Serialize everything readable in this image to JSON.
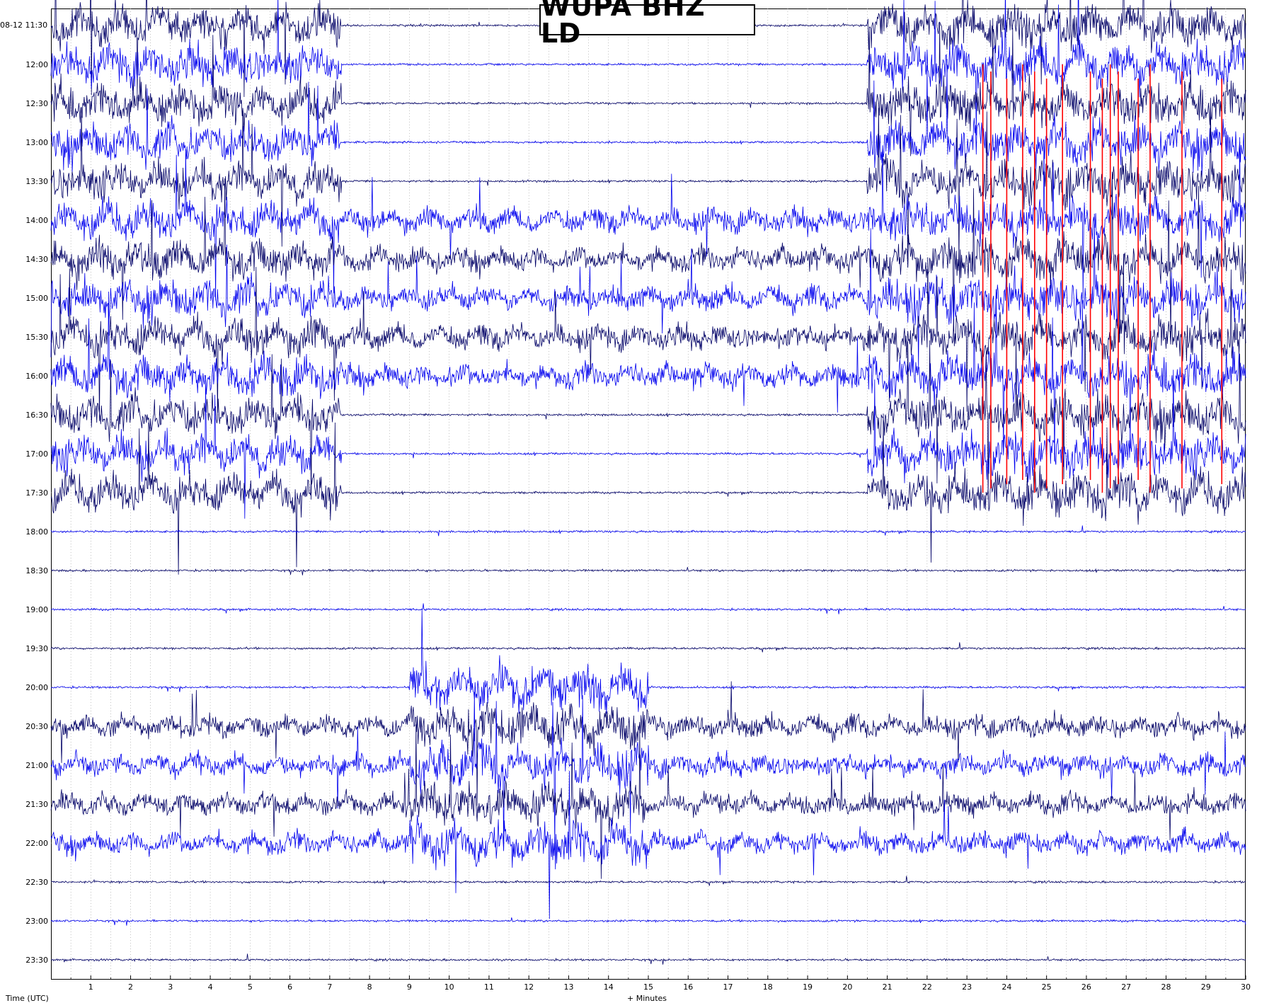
{
  "title": "WUPA BHZ LD",
  "start_label": "08-12 11:30",
  "x_axis_label_left": "Time (UTC)",
  "x_axis_label_center": "+ Minutes",
  "chart_data": {
    "type": "line",
    "title": "WUPA BHZ LD",
    "xlabel": "+ Minutes",
    "ylabel": "Time (UTC)",
    "xlim": [
      0,
      30
    ],
    "x_ticks": [
      "1",
      "2",
      "3",
      "4",
      "5",
      "6",
      "7",
      "8",
      "9",
      "10",
      "11",
      "12",
      "13",
      "14",
      "15",
      "16",
      "17",
      "18",
      "19",
      "20",
      "21",
      "22",
      "23",
      "24",
      "25",
      "26",
      "27",
      "28",
      "29",
      "30"
    ],
    "row_labels": [
      "12:00",
      "12:30",
      "13:00",
      "13:30",
      "14:00",
      "14:30",
      "15:00",
      "15:30",
      "16:00",
      "16:30",
      "17:00",
      "17:30",
      "18:00",
      "18:30",
      "19:00",
      "19:30",
      "20:00",
      "20:30",
      "21:00",
      "21:30",
      "22:00",
      "22:30",
      "23:00",
      "23:30"
    ],
    "grid": true,
    "colors": {
      "dark_trace": "#000066",
      "light_trace": "#0000ee",
      "clipped": "#ff0000",
      "grid": "#999999"
    },
    "note_series": [
      {
        "name": "Helicorder trace lines, alternating dark/light blue per row",
        "rows": 25
      }
    ],
    "activity": [
      {
        "rows": [
          0,
          12
        ],
        "start_min": 0,
        "end_min": 7.3,
        "level": 0.9
      },
      {
        "rows": [
          5,
          9
        ],
        "start_min": 7.3,
        "end_min": 23,
        "level": 0.55
      },
      {
        "rows": [
          0,
          12
        ],
        "start_min": 20.5,
        "end_min": 30,
        "level": 1.0
      },
      {
        "rows": [
          18,
          21
        ],
        "start_min": 0,
        "end_min": 30,
        "level": 0.5
      },
      {
        "rows": [
          17,
          21
        ],
        "start_min": 9,
        "end_min": 15,
        "level": 1.0
      }
    ]
  }
}
